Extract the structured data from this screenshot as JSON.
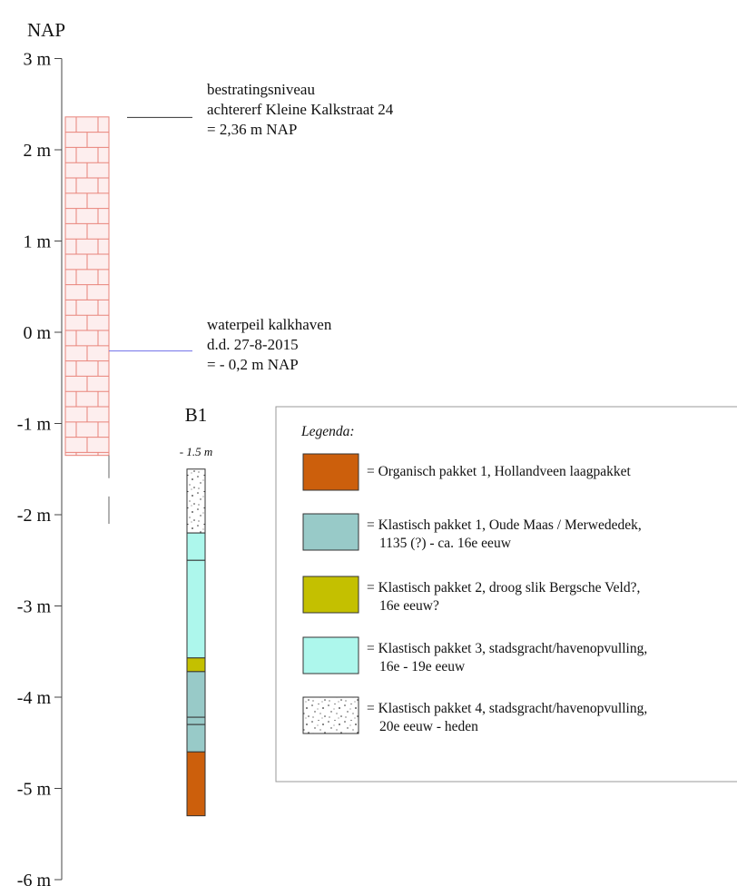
{
  "title": "NAP",
  "axis": {
    "ticks": [
      "3 m",
      "2 m",
      "1 m",
      "0 m",
      "-1 m",
      "-2 m",
      "-3 m",
      "-4 m",
      "-5 m",
      "-6 m"
    ],
    "tick_values": [
      3,
      2,
      1,
      0,
      -1,
      -2,
      -3,
      -4,
      -5,
      -6
    ]
  },
  "wall": {
    "top_m": 2.36,
    "hatched_bottom_m": -1.35,
    "line_bottom_m": -1.6,
    "gap_line_from_m": -1.8,
    "gap_line_to_m": -2.1,
    "brick_color": "#e8837a",
    "fill_color": "#fdeeee"
  },
  "annotations": [
    {
      "id": "bestrating",
      "level_m": 2.36,
      "lines": [
        "bestratingsniveau",
        "achtererf  Kleine Kalkstraat  24",
        "= 2,36 m NAP"
      ],
      "line_color": "#333333"
    },
    {
      "id": "waterpeil",
      "level_m": -0.2,
      "lines": [
        "waterpeil kalkhaven",
        "d.d. 27-8-2015",
        "= - 0,2 m NAP"
      ],
      "line_color": "#6f6fe8"
    }
  ],
  "boring": {
    "name": "B1",
    "start_label": "- 1.5 m",
    "top_m": -1.5,
    "layers": [
      {
        "from_m": -1.5,
        "to_m": -2.2,
        "type": "klastisch4"
      },
      {
        "from_m": -2.2,
        "to_m": -2.5,
        "type": "klastisch3"
      },
      {
        "from_m": -2.5,
        "to_m": -3.57,
        "type": "klastisch3"
      },
      {
        "from_m": -3.57,
        "to_m": -3.72,
        "type": "klastisch2"
      },
      {
        "from_m": -3.72,
        "to_m": -4.22,
        "type": "klastisch1"
      },
      {
        "from_m": -4.22,
        "to_m": -4.3,
        "type": "klastisch1"
      },
      {
        "from_m": -4.3,
        "to_m": -4.6,
        "type": "klastisch1"
      },
      {
        "from_m": -4.6,
        "to_m": -5.3,
        "type": "organisch1"
      }
    ]
  },
  "legend": {
    "title": "Legenda:",
    "items": [
      {
        "type": "organisch1",
        "color": "#cc5f0c",
        "lines": [
          "= Organisch pakket 1, Hollandveen laagpakket"
        ]
      },
      {
        "type": "klastisch1",
        "color": "#98cac8",
        "lines": [
          "= Klastisch pakket 1, Oude Maas / Merwededek,",
          "1135 (?) - ca. 16e eeuw"
        ]
      },
      {
        "type": "klastisch2",
        "color": "#c4c000",
        "lines": [
          "= Klastisch pakket 2, droog slik Bergsche Veld?,",
          "16e eeuw?"
        ]
      },
      {
        "type": "klastisch3",
        "color": "#adf7ec",
        "lines": [
          "= Klastisch pakket 3, stadsgracht/havenopvulling,",
          "16e - 19e eeuw"
        ]
      },
      {
        "type": "klastisch4",
        "color": "#ffffff",
        "lines": [
          "= Klastisch pakket 4, stadsgracht/havenopvulling,",
          "20e eeuw - heden"
        ]
      }
    ]
  }
}
